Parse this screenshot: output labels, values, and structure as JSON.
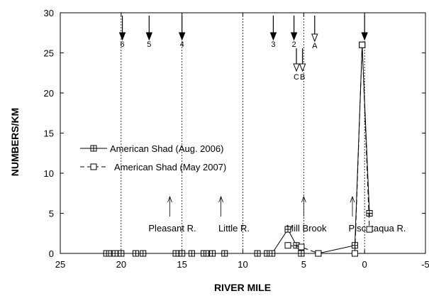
{
  "chart_data": {
    "type": "line",
    "xlabel": "RIVER MILE",
    "ylabel": "NUMBERS/KM",
    "xlim": [
      25,
      -5
    ],
    "ylim": [
      0,
      30
    ],
    "x_ticks": [
      25,
      20,
      15,
      10,
      5,
      0,
      -5
    ],
    "y_ticks": [
      0,
      5,
      10,
      15,
      20,
      25,
      30
    ],
    "x_ticks_labels": [
      "25",
      "20",
      "15",
      "10",
      "5",
      "0",
      "-5"
    ],
    "y_ticks_labels": [
      "0",
      "5",
      "10",
      "15",
      "20",
      "25",
      "30"
    ],
    "vertical_gridlines_x": [
      20,
      15,
      10,
      5,
      0
    ],
    "series": [
      {
        "name": "American Shad (Aug. 2006)",
        "marker": "square-plus",
        "line": "solid",
        "points": [
          [
            21.2,
            0
          ],
          [
            20.8,
            0
          ],
          [
            20.5,
            0
          ],
          [
            20.0,
            0
          ],
          [
            18.8,
            0
          ],
          [
            18.2,
            0
          ],
          [
            15.5,
            0
          ],
          [
            15.0,
            0
          ],
          [
            14.2,
            0
          ],
          [
            13.2,
            0
          ],
          [
            12.8,
            0
          ],
          [
            12.5,
            0
          ],
          [
            11.5,
            0
          ],
          [
            8.8,
            0
          ],
          [
            8.0,
            0
          ],
          [
            7.6,
            0
          ],
          [
            6.3,
            3
          ],
          [
            5.6,
            1
          ],
          [
            5.2,
            0
          ],
          [
            3.8,
            0
          ],
          [
            0.8,
            1
          ],
          [
            0.2,
            26
          ],
          [
            -0.4,
            5
          ]
        ]
      },
      {
        "name": "American Shad (May 2007)",
        "marker": "square-open",
        "line": "dashed",
        "points": [
          [
            6.3,
            1
          ],
          [
            5.2,
            0.8
          ],
          [
            3.8,
            0
          ],
          [
            0.8,
            0
          ],
          [
            0.2,
            26
          ],
          [
            -0.4,
            3
          ]
        ]
      }
    ],
    "station_arrows": [
      {
        "label": "6",
        "x": 19.9,
        "style": "filled"
      },
      {
        "label": "5",
        "x": 17.7,
        "style": "filled"
      },
      {
        "label": "4",
        "x": 15.0,
        "style": "filled"
      },
      {
        "label": "3",
        "x": 7.5,
        "style": "filled"
      },
      {
        "label": "2",
        "x": 5.8,
        "style": "filled"
      },
      {
        "label": "A",
        "x": 4.1,
        "style": "open"
      },
      {
        "label": "C",
        "x": 5.6,
        "style": "open"
      },
      {
        "label": "B",
        "x": 5.1,
        "style": "open"
      },
      {
        "label": "",
        "x": 0.0,
        "style": "filled"
      }
    ],
    "annotations": [
      {
        "text": "Pleasant R.",
        "arrow_x": 16.0
      },
      {
        "text": "Little R.",
        "arrow_x": 11.8
      },
      {
        "text": "Mill Brook",
        "arrow_x": 5.0
      },
      {
        "text": "Piscataqua R.",
        "arrow_x": 1.0
      }
    ]
  }
}
